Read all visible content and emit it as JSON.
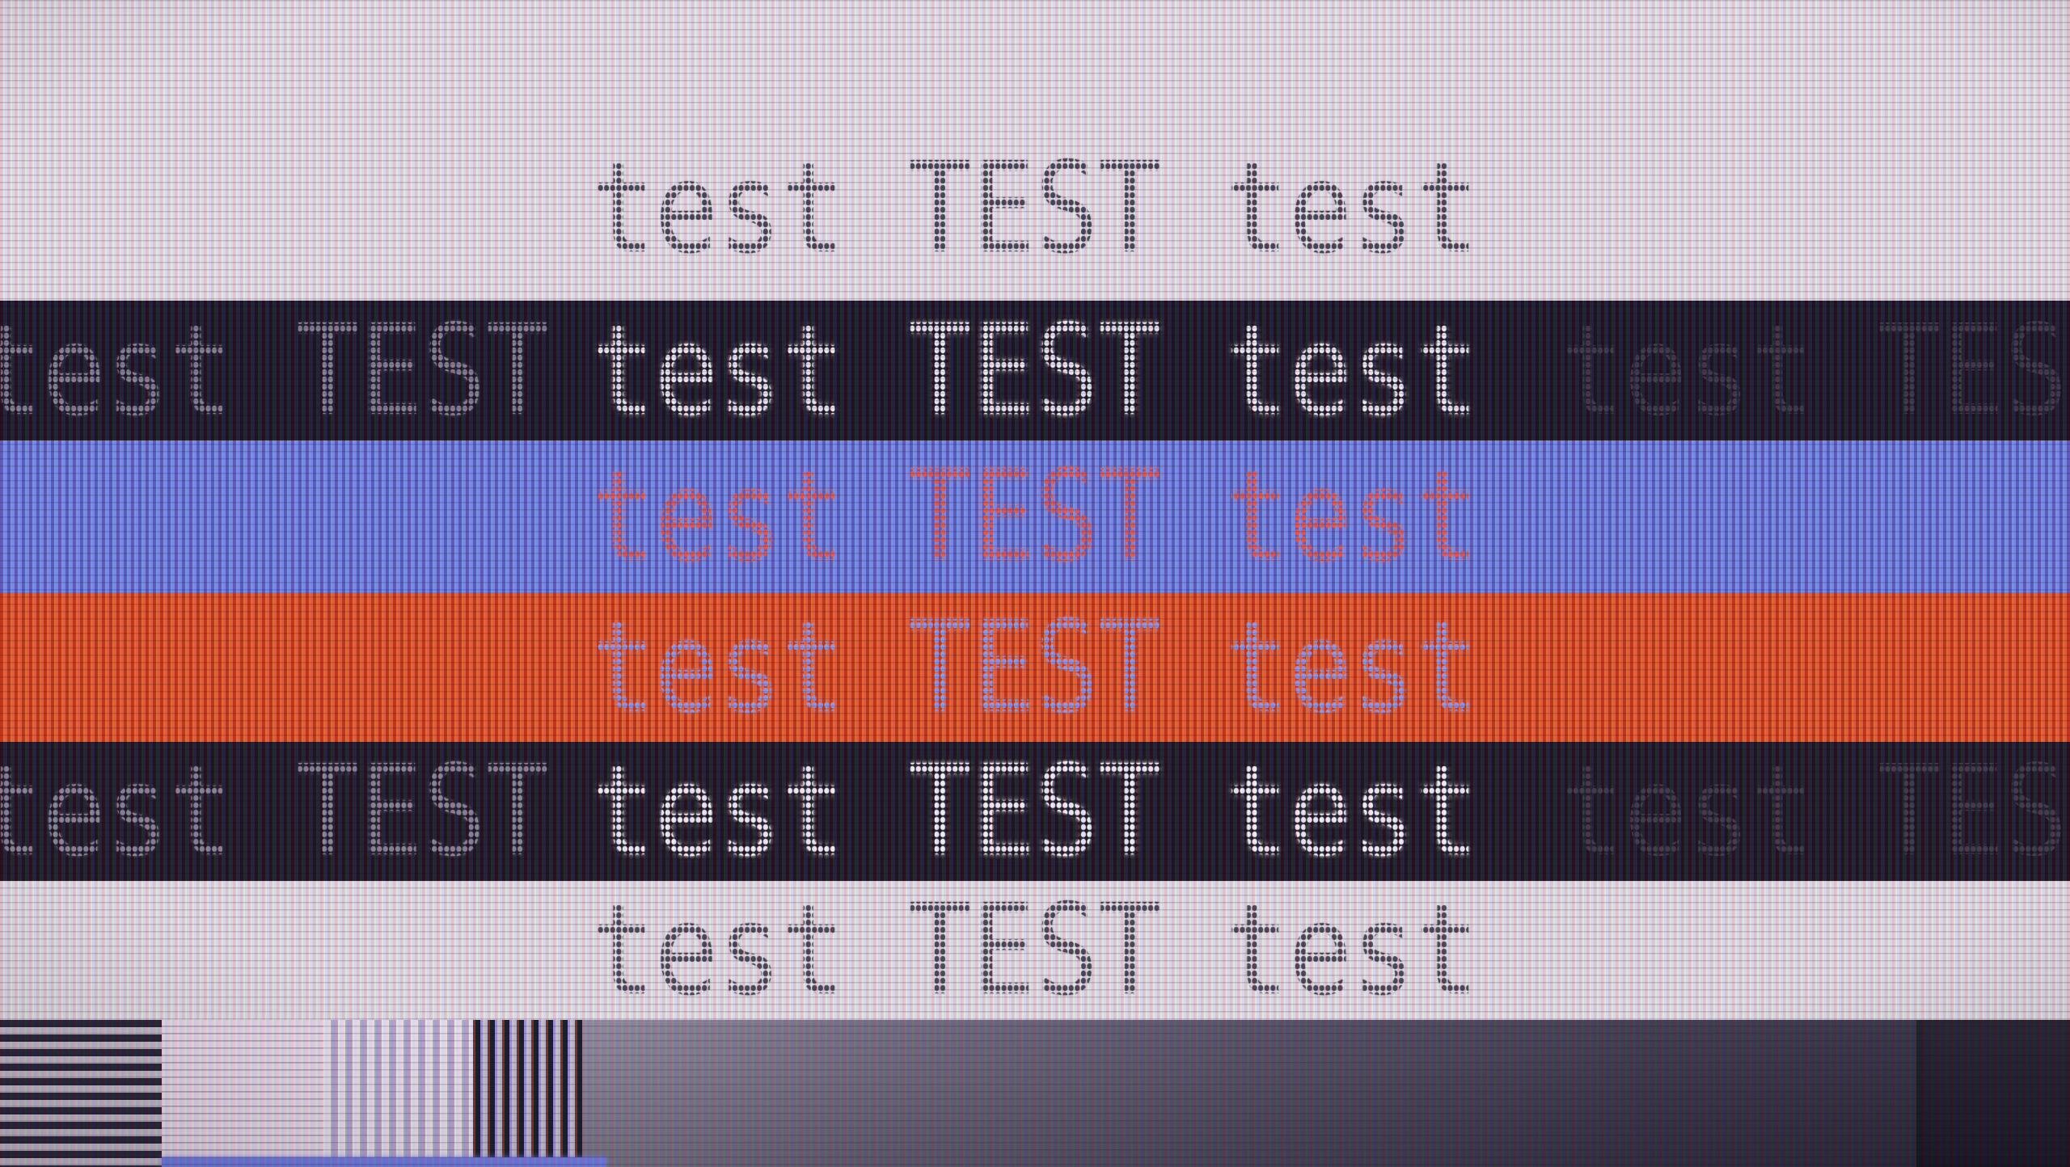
{
  "screen": {
    "title": "monitor-test-pattern-photo",
    "text": {
      "center": "test TEST test",
      "side": "test TEST"
    },
    "bands": [
      {
        "name": "white-top",
        "bg_dark": "#ddd1da",
        "bg_light": "#efe5ea",
        "text_color": "#413d49"
      },
      {
        "name": "black-upper",
        "bg_dark": "#0e0a16",
        "bg_light": "#1d1726",
        "text_color_bright": "#f4eff4",
        "text_color_mid": "#877f91",
        "text_color_dim": "#3a3442"
      },
      {
        "name": "blue",
        "bg_dark": "#4d5cc0",
        "bg_light": "#7d8ae6",
        "text_color": "#e4544b"
      },
      {
        "name": "red",
        "bg_dark": "#b93410",
        "bg_light": "#f25a28",
        "text_color": "#8e96ec"
      },
      {
        "name": "black-lower",
        "bg_dark": "#100b15",
        "bg_light": "#1f1824",
        "text_color_bright": "#f4eff4",
        "text_color_mid": "#877f91",
        "text_color_dim": "#3a3442"
      },
      {
        "name": "white-lower",
        "bg_dark": "#dbd0d7",
        "bg_light": "#ece3e7",
        "text_color": "#443f4b"
      }
    ],
    "bottom_patterns": {
      "horizontal_stripes": {
        "dark": "#221c2b",
        "light": "#c3b9c4"
      },
      "light_block": {
        "light": "#ecdbe7",
        "shade": "#cfc3d6"
      },
      "fine_vertical_stripes": {
        "light": "#f2e6ee",
        "shade": "#b4aacf"
      },
      "bold_vertical_stripes": {
        "dark": "#150f1f",
        "light": "#cabcc2"
      },
      "gray_gradient": {
        "g1": "#8c8496",
        "g2": "#6e6679",
        "g3": "#4c4558",
        "g4": "#332d3f",
        "g5": "#272232"
      },
      "dark_end_block": {
        "color": "#17121f"
      },
      "blue_strip": {
        "color": "#6f7adf"
      }
    }
  }
}
